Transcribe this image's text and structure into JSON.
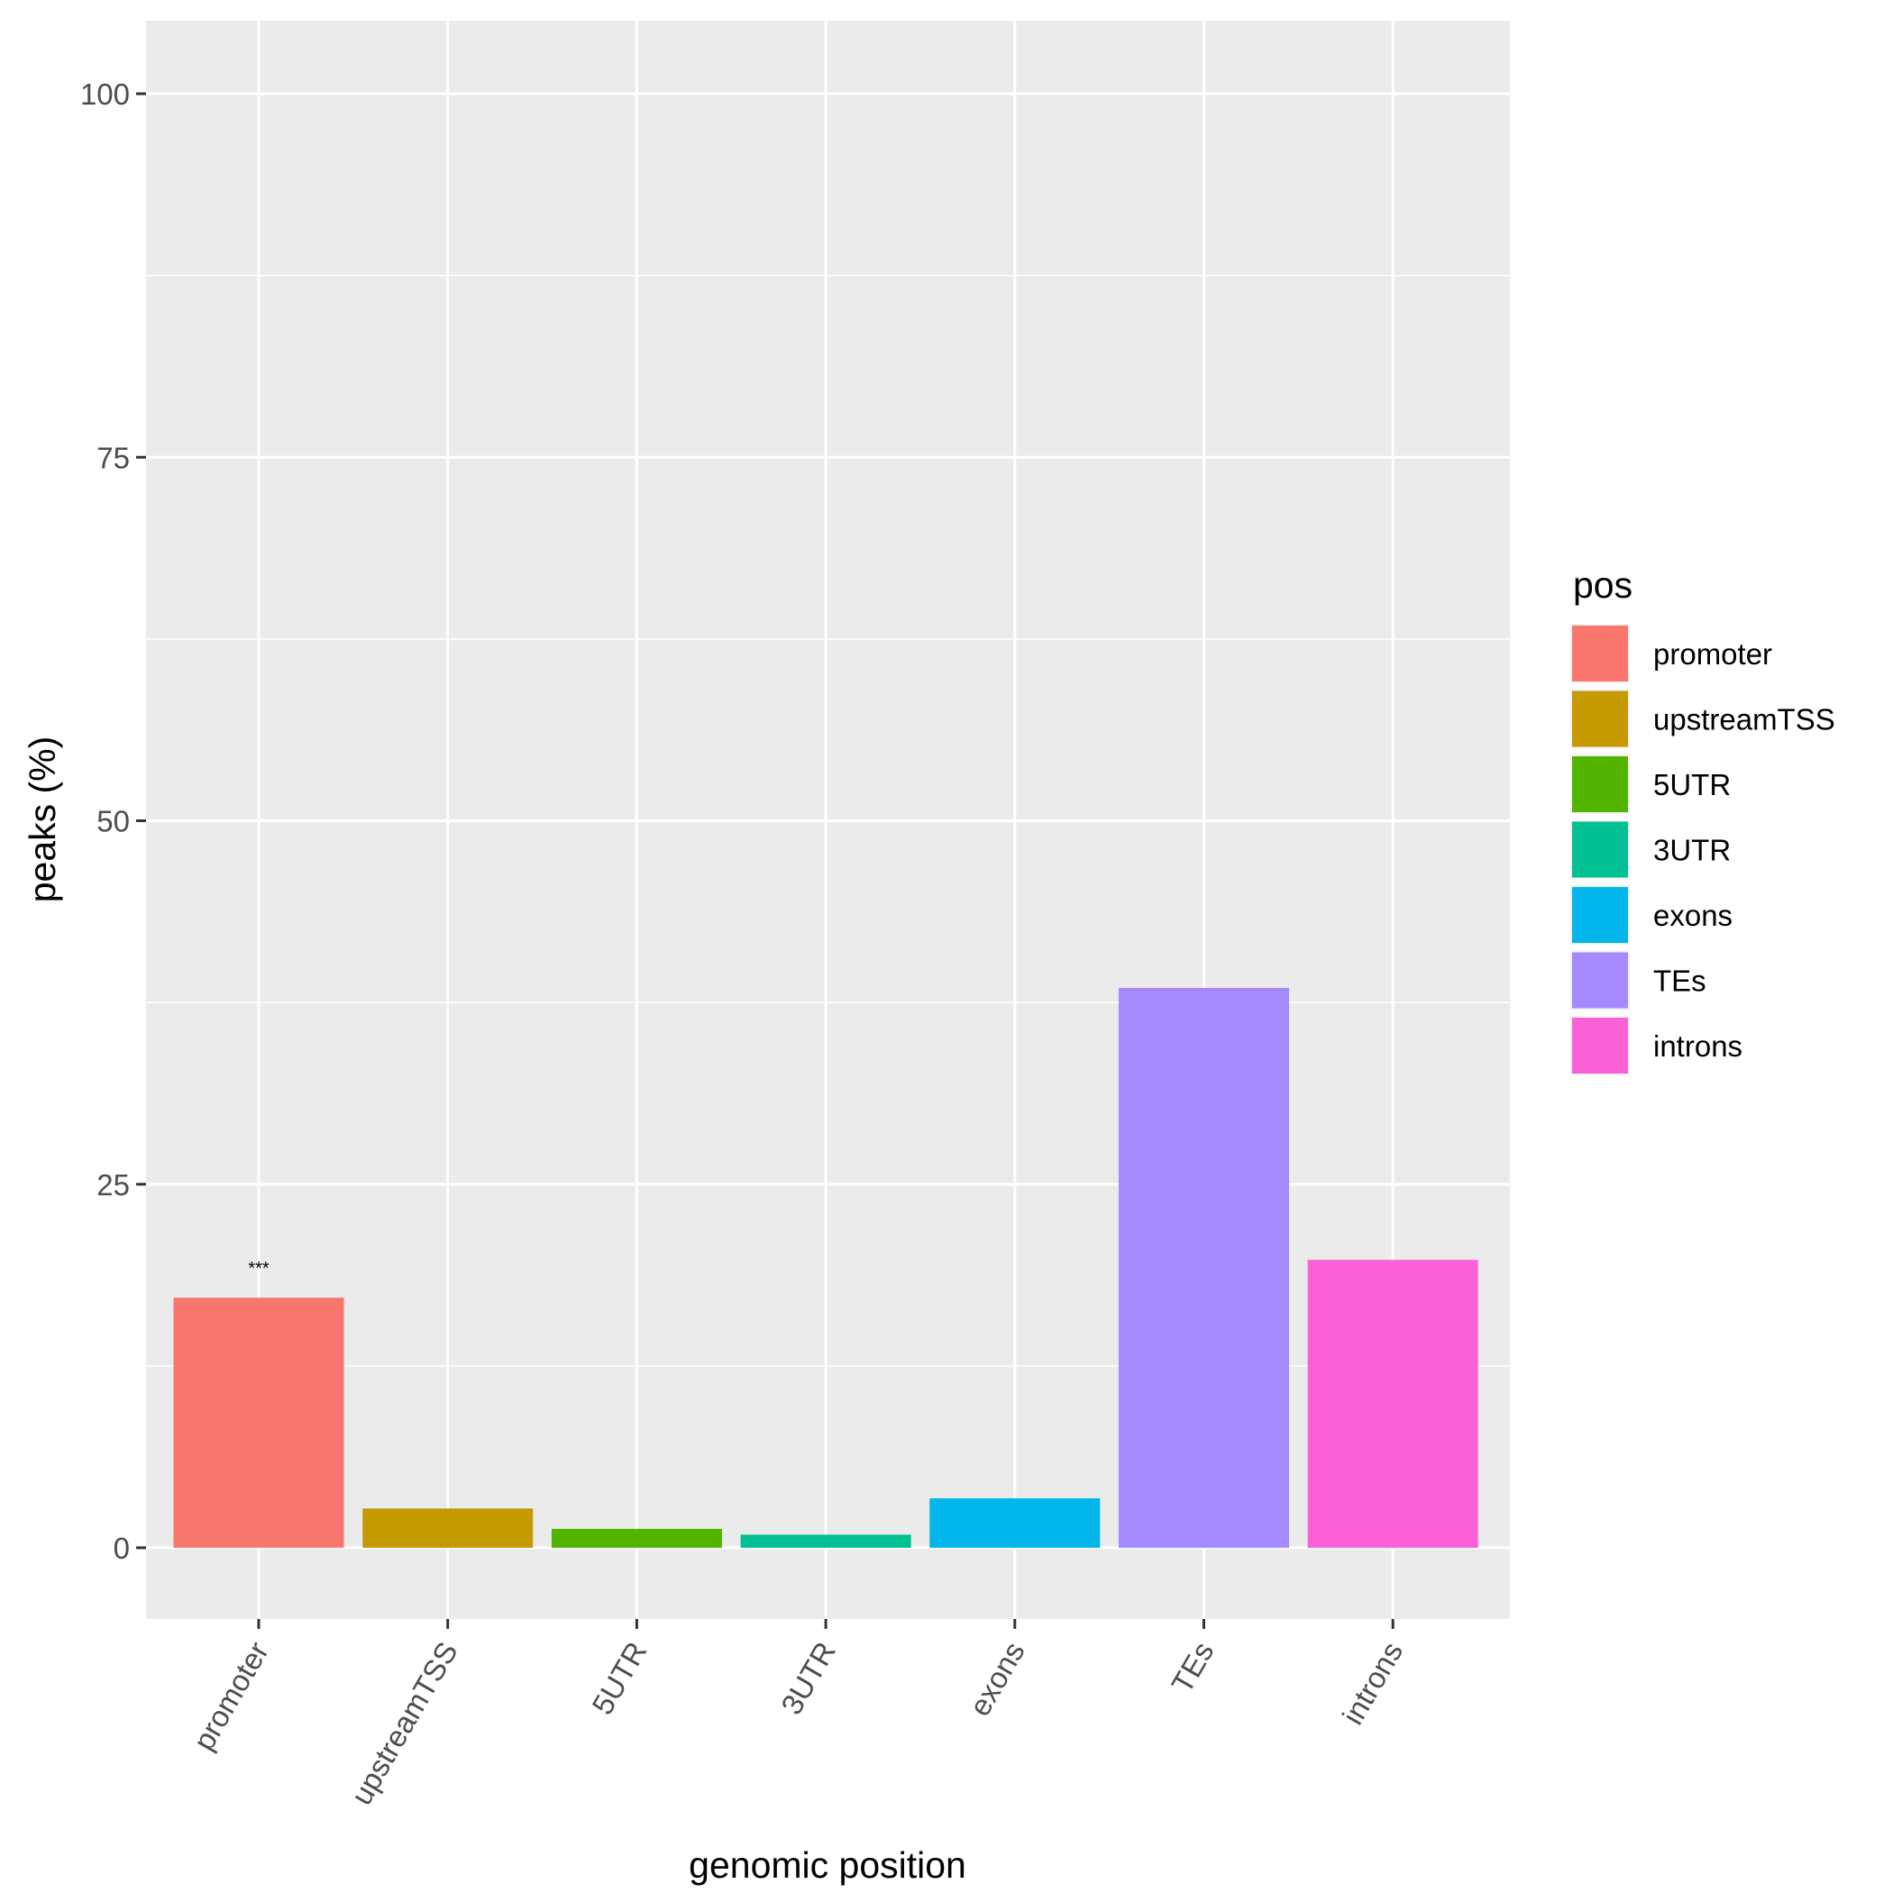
{
  "chart_data": {
    "type": "bar",
    "categories": [
      "promoter",
      "upstreamTSS",
      "5UTR",
      "3UTR",
      "exons",
      "TEs",
      "introns"
    ],
    "values": [
      17.2,
      2.7,
      1.3,
      0.9,
      3.4,
      38.5,
      19.8
    ],
    "colors": [
      "#F8766D",
      "#C49A00",
      "#53B400",
      "#00C094",
      "#00B6EB",
      "#A58AFF",
      "#FB61D7"
    ],
    "xlabel": "genomic position",
    "ylabel": "peaks (%)",
    "ylim": [
      -5,
      105
    ],
    "yticks": [
      0,
      25,
      50,
      75,
      100
    ],
    "ytick_labels": [
      "0",
      "25",
      "50",
      "75",
      "100"
    ],
    "grid": true,
    "legend": {
      "title": "pos",
      "placement": "right",
      "entries": [
        "promoter",
        "upstreamTSS",
        "5UTR",
        "3UTR",
        "exons",
        "TEs",
        "introns"
      ]
    },
    "annotations": [
      {
        "category": "promoter",
        "text": "***"
      }
    ]
  }
}
